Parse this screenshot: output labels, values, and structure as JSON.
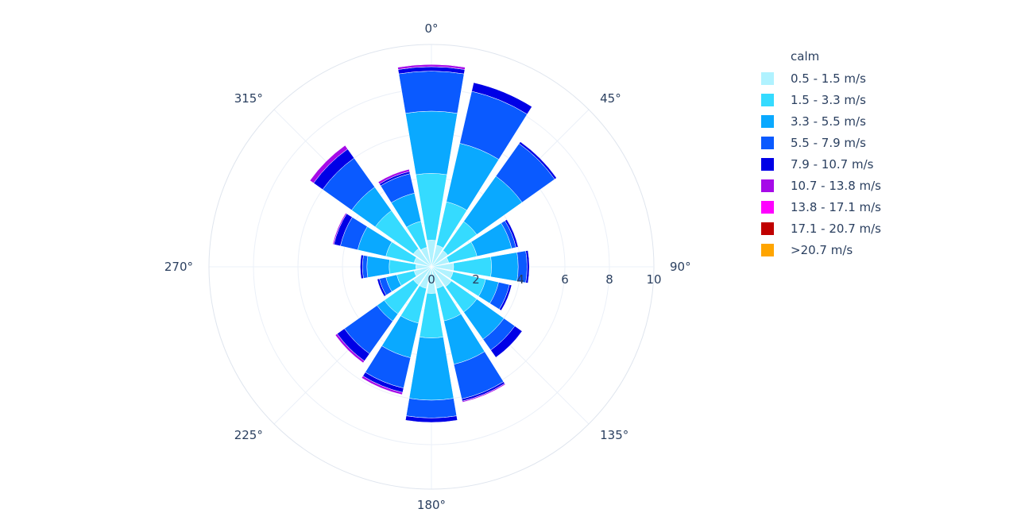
{
  "chart_data": {
    "type": "barpolar",
    "radial_axis": {
      "range": [
        0,
        10
      ],
      "tick_labels": [
        "0",
        "2",
        "4",
        "6",
        "8",
        "10"
      ]
    },
    "angular_axis": {
      "tick_labels": [
        "0°",
        "45°",
        "90°",
        "135°",
        "180°",
        "225°",
        "270°",
        "315°"
      ]
    },
    "directions_deg": [
      0,
      22.5,
      45,
      67.5,
      90,
      112.5,
      135,
      157.5,
      180,
      202.5,
      225,
      247.5,
      270,
      292.5,
      315,
      337.5
    ],
    "legend_title": "calm",
    "legend_position": "right",
    "series": [
      {
        "name": "0.5 - 1.5 m/s",
        "color": "#b0f2ff",
        "values": [
          1.2,
          1.0,
          0.9,
          0.8,
          1.0,
          1.0,
          1.1,
          1.0,
          1.2,
          1.0,
          1.0,
          0.8,
          0.7,
          0.8,
          1.0,
          0.9
        ]
      },
      {
        "name": "1.5 - 3.3 m/s",
        "color": "#35dbff",
        "values": [
          3.0,
          2.0,
          1.6,
          1.3,
          1.7,
          1.5,
          1.4,
          1.5,
          2.0,
          1.6,
          1.6,
          0.8,
          1.2,
          1.3,
          2.1,
          1.2
        ]
      },
      {
        "name": "3.3 - 5.5 m/s",
        "color": "#0aa9ff",
        "values": [
          2.8,
          2.7,
          2.5,
          1.6,
          1.2,
          0.6,
          1.5,
          2.0,
          2.8,
          1.6,
          0.4,
          0.5,
          1.0,
          1.3,
          1.3,
          1.3
        ]
      },
      {
        "name": "5.5 - 7.9 m/s",
        "color": "#0a5aff",
        "values": [
          1.8,
          2.4,
          1.8,
          0.2,
          0.4,
          0.5,
          0.6,
          1.6,
          0.8,
          1.4,
          1.8,
          0.3,
          0.2,
          0.8,
          1.6,
          0.9
        ]
      },
      {
        "name": "7.9 - 10.7 m/s",
        "color": "#0000e6",
        "values": [
          0.2,
          0.4,
          0.1,
          0.1,
          0.1,
          0.1,
          0.4,
          0.1,
          0.2,
          0.2,
          0.4,
          0.1,
          0.1,
          0.3,
          0.5,
          0.1
        ]
      },
      {
        "name": "10.7 - 13.8 m/s",
        "color": "#a60ae8",
        "values": [
          0.1,
          0.0,
          0.0,
          0.0,
          0.0,
          0.0,
          0.0,
          0.05,
          0.0,
          0.1,
          0.1,
          0.0,
          0.0,
          0.05,
          0.2,
          0.1
        ]
      },
      {
        "name": "13.8 - 17.1 m/s",
        "color": "#ff00ff",
        "values": [
          0,
          0,
          0,
          0,
          0,
          0,
          0,
          0,
          0,
          0,
          0,
          0,
          0,
          0,
          0,
          0
        ]
      },
      {
        "name": "17.1 - 20.7 m/s",
        "color": "#c00000",
        "values": [
          0,
          0,
          0,
          0,
          0,
          0,
          0,
          0,
          0,
          0,
          0,
          0,
          0,
          0,
          0,
          0
        ]
      },
      {
        "name": ">20.7 m/s",
        "color": "#ffa500",
        "values": [
          0,
          0,
          0,
          0,
          0,
          0,
          0,
          0,
          0,
          0,
          0,
          0,
          0,
          0,
          0,
          0
        ]
      }
    ]
  }
}
